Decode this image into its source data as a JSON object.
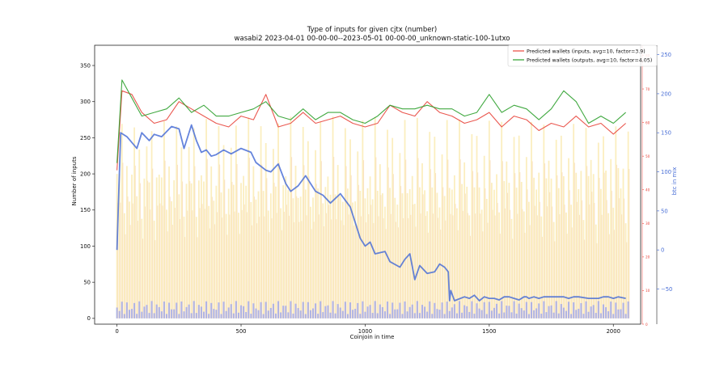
{
  "chart_data": {
    "type": "line",
    "title": "Type of inputs for given cjtx (number)",
    "subtitle": "wasabi2 2023-04-01 00-00-00--2023-05-01 00-00-00_unknown-static-100-1utxo",
    "xlabel": "Coinjoin in time",
    "ylabel": "Number of inputs",
    "y2label": "btc in mix",
    "xlim": [
      -90,
      2110
    ],
    "ylim": [
      -8,
      378
    ],
    "y2lim": [
      -95,
      262
    ],
    "y3lim": [
      0,
      83
    ],
    "x_ticks": [
      0,
      500,
      1000,
      1500,
      2000
    ],
    "y_ticks": [
      0,
      50,
      100,
      150,
      200,
      250,
      300,
      350
    ],
    "y2_ticks": [
      -50,
      0,
      50,
      100,
      150,
      200,
      250
    ],
    "y2_tick_labels": [
      "−50",
      "0",
      "50",
      "100",
      "150",
      "200",
      "250"
    ],
    "y3_ticks": [
      0,
      10,
      20,
      30,
      40,
      50,
      60,
      70,
      80
    ],
    "grid": false,
    "legend_position": "top-right",
    "colors": {
      "inputs": "#e8453c",
      "outputs": "#2ca02c",
      "btc": "#4a6fd6",
      "stack_yellow": "#f7e08a",
      "stack_orange": "#f4c08a",
      "stack_blue": "#8f9bf2"
    },
    "series": [
      {
        "name": "Predicted wallets (inputs, avg=10, factor=3.9)",
        "x": [
          0,
          20,
          60,
          100,
          150,
          200,
          250,
          300,
          350,
          400,
          450,
          500,
          550,
          600,
          650,
          700,
          750,
          800,
          850,
          900,
          950,
          1000,
          1050,
          1100,
          1150,
          1200,
          1250,
          1300,
          1350,
          1400,
          1450,
          1500,
          1550,
          1600,
          1650,
          1700,
          1750,
          1800,
          1850,
          1900,
          1950,
          2000,
          2050
        ],
        "values": [
          205,
          315,
          310,
          285,
          270,
          275,
          300,
          290,
          280,
          270,
          265,
          280,
          275,
          310,
          265,
          270,
          285,
          270,
          275,
          280,
          270,
          265,
          270,
          295,
          285,
          280,
          300,
          285,
          280,
          270,
          275,
          285,
          265,
          280,
          275,
          260,
          270,
          265,
          280,
          265,
          270,
          255,
          270
        ]
      },
      {
        "name": "Predicted wallets (outputs, avg=10, factor=4.05)",
        "x": [
          0,
          20,
          60,
          100,
          150,
          200,
          250,
          300,
          350,
          400,
          450,
          500,
          550,
          600,
          650,
          700,
          750,
          800,
          850,
          900,
          950,
          1000,
          1050,
          1100,
          1150,
          1200,
          1250,
          1300,
          1350,
          1400,
          1450,
          1500,
          1550,
          1600,
          1650,
          1700,
          1750,
          1800,
          1850,
          1900,
          1950,
          2000,
          2050
        ],
        "values": [
          215,
          330,
          305,
          280,
          285,
          290,
          305,
          285,
          295,
          280,
          280,
          285,
          290,
          300,
          280,
          275,
          290,
          275,
          285,
          285,
          275,
          270,
          280,
          295,
          290,
          290,
          295,
          290,
          290,
          280,
          285,
          310,
          285,
          295,
          290,
          275,
          290,
          315,
          300,
          270,
          280,
          270,
          285
        ]
      },
      {
        "name": "btc in mix",
        "axis": "right",
        "x": [
          0,
          5,
          15,
          40,
          80,
          100,
          130,
          150,
          180,
          220,
          250,
          270,
          300,
          310,
          320,
          340,
          360,
          380,
          400,
          430,
          460,
          500,
          540,
          560,
          600,
          620,
          650,
          680,
          700,
          730,
          760,
          800,
          830,
          860,
          900,
          940,
          960,
          980,
          1000,
          1020,
          1040,
          1080,
          1100,
          1140,
          1160,
          1180,
          1200,
          1220,
          1250,
          1280,
          1300,
          1320,
          1335,
          1340,
          1345,
          1360,
          1400,
          1420,
          1440,
          1460,
          1480,
          1500,
          1520,
          1540,
          1560,
          1580,
          1600,
          1620,
          1640,
          1650,
          1660,
          1680,
          1700,
          1720,
          1760,
          1800,
          1820,
          1840,
          1860,
          1900,
          1940,
          1960,
          1980,
          2000,
          2020,
          2050
        ],
        "values": [
          0,
          50,
          150,
          145,
          130,
          150,
          140,
          148,
          145,
          158,
          155,
          130,
          160,
          150,
          140,
          125,
          128,
          120,
          122,
          128,
          123,
          130,
          125,
          112,
          102,
          100,
          110,
          85,
          75,
          82,
          95,
          75,
          70,
          60,
          72,
          55,
          35,
          15,
          5,
          10,
          -5,
          -2,
          -15,
          -22,
          -12,
          -5,
          -38,
          -20,
          -30,
          -28,
          -18,
          -22,
          -28,
          -65,
          -52,
          -65,
          -60,
          -62,
          -58,
          -65,
          -60,
          -62,
          -62,
          -64,
          -60,
          -60,
          -62,
          -64,
          -60,
          -60,
          -62,
          -60,
          -62,
          -60,
          -60,
          -60,
          -62,
          -60,
          -60,
          -62,
          -62,
          -60,
          -60,
          -62,
          -60,
          -62
        ]
      }
    ],
    "stacked_bars": {
      "description_axis": "third",
      "layers": [
        "blue",
        "yellow",
        "orange"
      ]
    }
  },
  "legend": {
    "inputs_label": "Predicted wallets (inputs, avg=10, factor=3.9)",
    "outputs_label": "Predicted wallets (outputs, avg=10, factor=4.05)"
  }
}
